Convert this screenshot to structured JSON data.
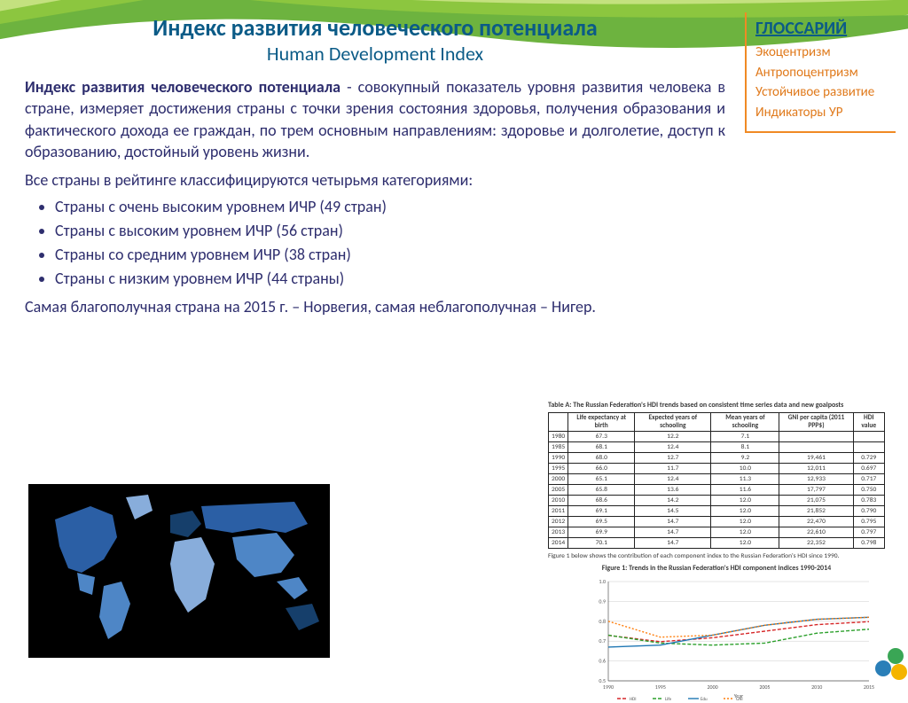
{
  "header": {
    "title_ru": "Индекс развития человеческого потенциала",
    "title_en": "Human Development Index",
    "title_color": "#0b5b87"
  },
  "swoosh_colors": [
    "#6db33f",
    "#8cc63f",
    "#c4e17f"
  ],
  "definition": "Индекс развития человеческого потенциала - совокупный показатель уровня развития человека в стране, измеряет достижения страны с точки зрения состояния здоровья, получения образования и фактического дохода ее граждан, по трем основным направлениям: здоровье и долголетие, доступ к образованию, достойный уровень жизни.",
  "classification_intro": "Все страны в рейтинге классифицируются четырьмя категориями:",
  "bullets": [
    "Страны с очень высоким уровнем ИЧР (49 стран)",
    "Страны с высоким уровнем ИЧР (56 стран)",
    "Страны со средним уровнем ИЧР (38 стран)",
    "Страны с низким уровнем ИЧР (44 страны)"
  ],
  "footnote": "Самая благополучная страна на 2015 г. – Норвегия, самая неблагополучная – Нигер.",
  "glossary": {
    "heading": "ГЛОССАРИЙ",
    "border_color": "#f08a24",
    "item_color": "#e07a1c",
    "items": [
      "Экоцентризм",
      "Антропоцентризм",
      "Устойчивое развитие",
      "Индикаторы УР"
    ]
  },
  "map": {
    "bg": "#000000",
    "land_palette": [
      "#0a2540",
      "#163f6b",
      "#2b5fa5",
      "#4e86c6",
      "#88addb",
      "#c1d4ec"
    ]
  },
  "hdi_table": {
    "title": "Table A: The Russian Federation's HDI trends based on consistent time series data and new goalposts",
    "columns": [
      "",
      "Life expectancy at birth",
      "Expected years of schooling",
      "Mean years of schooling",
      "GNI per capita (2011 PPP$)",
      "HDI value"
    ],
    "rows": [
      [
        "1980",
        "67.3",
        "12.2",
        "7.1",
        "",
        ""
      ],
      [
        "1985",
        "68.1",
        "12.4",
        "8.1",
        "",
        ""
      ],
      [
        "1990",
        "68.0",
        "12.7",
        "9.2",
        "19,461",
        "0.729"
      ],
      [
        "1995",
        "66.0",
        "11.7",
        "10.0",
        "12,011",
        "0.697"
      ],
      [
        "2000",
        "65.1",
        "12.4",
        "11.3",
        "12,933",
        "0.717"
      ],
      [
        "2005",
        "65.8",
        "13.6",
        "11.6",
        "17,797",
        "0.750"
      ],
      [
        "2010",
        "68.6",
        "14.2",
        "12.0",
        "21,075",
        "0.783"
      ],
      [
        "2011",
        "69.1",
        "14.5",
        "12.0",
        "21,852",
        "0.790"
      ],
      [
        "2012",
        "69.5",
        "14.7",
        "12.0",
        "22,470",
        "0.795"
      ],
      [
        "2013",
        "69.9",
        "14.7",
        "12.0",
        "22,610",
        "0.797"
      ],
      [
        "2014",
        "70.1",
        "14.7",
        "12.0",
        "22,352",
        "0.798"
      ]
    ],
    "caption": "Figure 1 below shows the contribution of each component index to the Russian Federation's HDI since 1990.",
    "figure_title": "Figure 1: Trends in the Russian Federation's HDI component indices 1990-2014"
  },
  "line_chart": {
    "xlim": [
      1990,
      2015
    ],
    "ylim": [
      0.5,
      1.0
    ],
    "xticks": [
      1990,
      1995,
      2000,
      2005,
      2010,
      2015
    ],
    "yticks": [
      0.5,
      0.6,
      0.7,
      0.8,
      0.9,
      1.0
    ],
    "background": "#ffffff",
    "grid_color": "#cccccc",
    "series": [
      {
        "name": "HDI",
        "color": "#d62728",
        "dash": "4,2",
        "y": [
          0.729,
          0.697,
          0.717,
          0.75,
          0.783,
          0.798
        ]
      },
      {
        "name": "Life",
        "color": "#2ca02c",
        "dash": "4,2",
        "y": [
          0.73,
          0.69,
          0.68,
          0.69,
          0.74,
          0.76
        ]
      },
      {
        "name": "Edu",
        "color": "#1f77b4",
        "dash": "none",
        "y": [
          0.67,
          0.68,
          0.73,
          0.78,
          0.81,
          0.82
        ]
      },
      {
        "name": "GNI",
        "color": "#ff7f0e",
        "dash": "2,2",
        "y": [
          0.8,
          0.72,
          0.73,
          0.78,
          0.81,
          0.82
        ]
      }
    ]
  },
  "text_color": "#2e2e6e"
}
